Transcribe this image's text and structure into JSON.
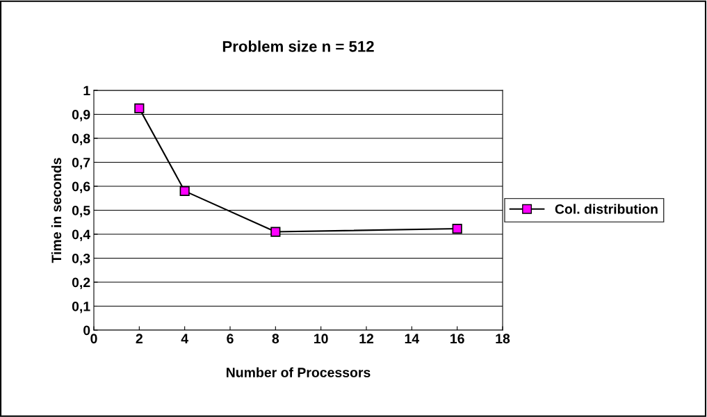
{
  "chart_data": {
    "type": "line",
    "title": "Problem size n = 512",
    "xlabel": "Number of Processors",
    "ylabel": "Time in seconds",
    "x": [
      2,
      4,
      8,
      16
    ],
    "series": [
      {
        "name": "Col. distribution",
        "color": "#ff00ff",
        "values": [
          0.925,
          0.58,
          0.41,
          0.423
        ]
      }
    ],
    "xlim": [
      0,
      18
    ],
    "xticks": [
      0,
      2,
      4,
      6,
      8,
      10,
      12,
      14,
      16,
      18
    ],
    "ylim": [
      0,
      1
    ],
    "yticks": [
      0,
      {
        "value": 0.1,
        "label": "0,1"
      },
      {
        "value": 0.2,
        "label": "0,2"
      },
      {
        "value": 0.3,
        "label": "0,3"
      },
      {
        "value": 0.4,
        "label": "0,4"
      },
      {
        "value": 0.5,
        "label": "0,5"
      },
      {
        "value": 0.6,
        "label": "0,6"
      },
      {
        "value": 0.7,
        "label": "0,7"
      },
      {
        "value": 0.8,
        "label": "0,8"
      },
      {
        "value": 0.9,
        "label": "0,9"
      },
      1
    ],
    "grid": "y",
    "legend": "right",
    "marker": "square",
    "line_style": "solid"
  }
}
